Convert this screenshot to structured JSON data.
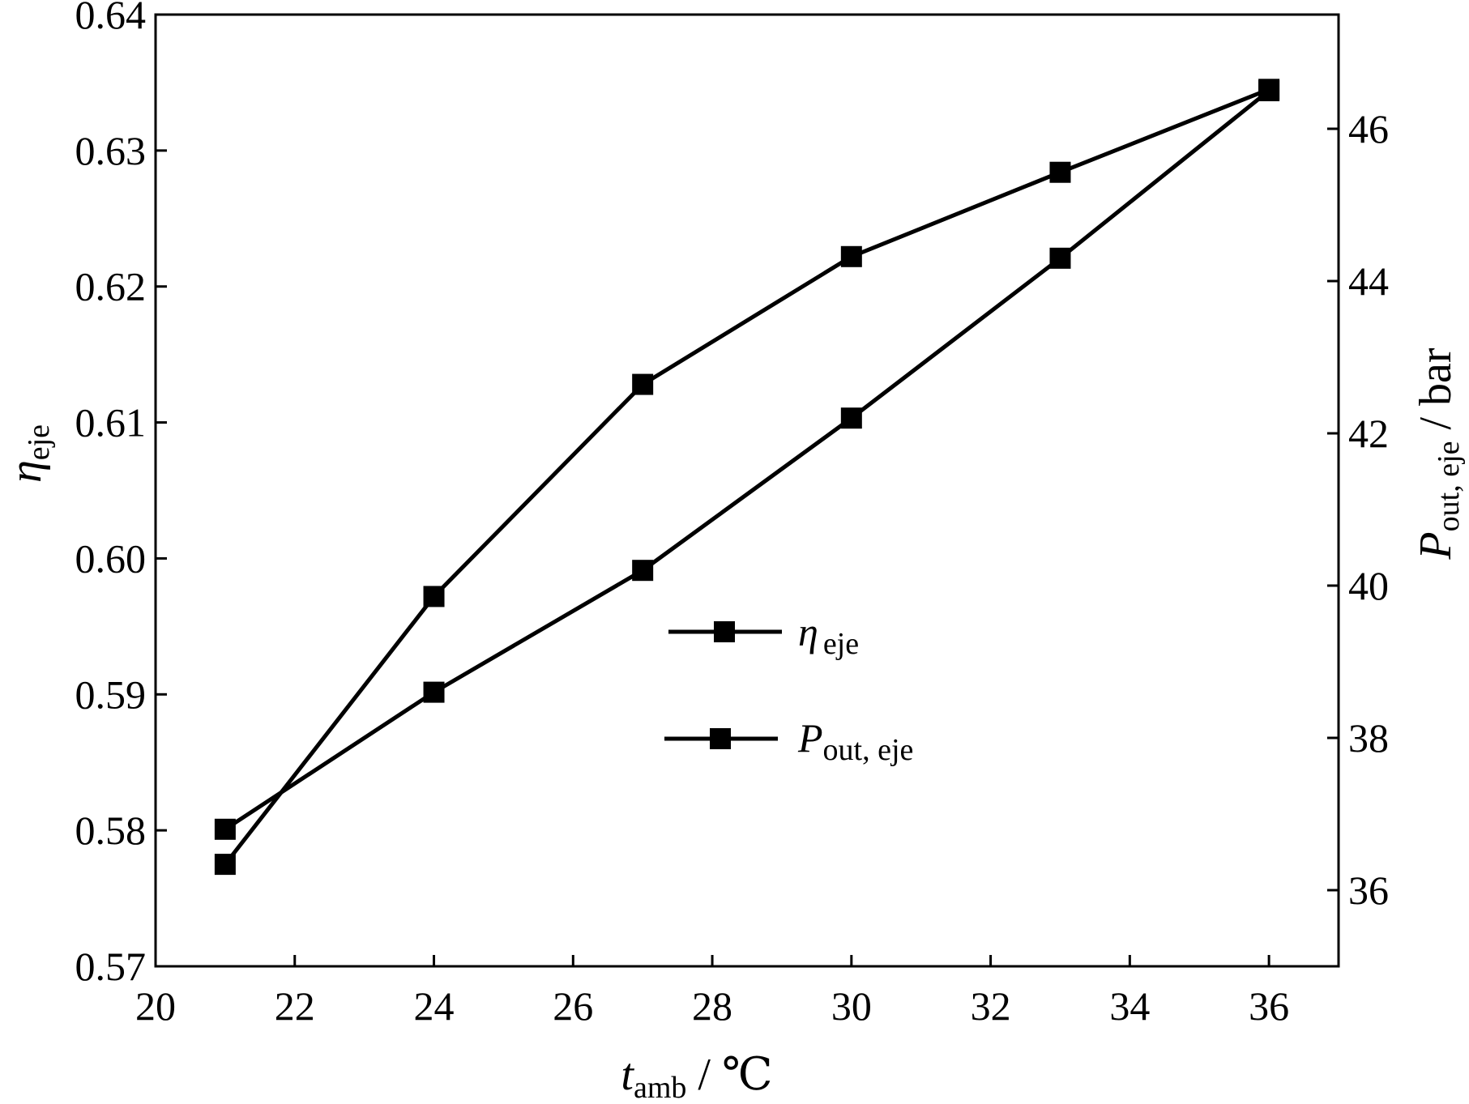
{
  "chart_data": {
    "type": "line",
    "title": "",
    "x": [
      21,
      24,
      27,
      30,
      33,
      36
    ],
    "xlim": [
      20,
      37
    ],
    "x_ticks": [
      "20",
      "22",
      "24",
      "26",
      "28",
      "30",
      "32",
      "34",
      "36"
    ],
    "xlabel": {
      "main": "t",
      "sub": "amb",
      "unit": " / ℃"
    },
    "y_left": {
      "label": {
        "main": "η",
        "sub": "eje"
      },
      "lim": [
        0.57,
        0.64
      ],
      "ticks": [
        "0.57",
        "0.58",
        "0.59",
        "0.60",
        "0.61",
        "0.62",
        "0.63",
        "0.64"
      ]
    },
    "y_right": {
      "label": {
        "main": "P",
        "sub": "out, eje",
        "unit": " / bar"
      },
      "lim": [
        35,
        47.5
      ],
      "ticks": [
        "36",
        "38",
        "40",
        "42",
        "44",
        "46"
      ]
    },
    "series": [
      {
        "name": "η eje",
        "legend": {
          "main": "η",
          "sub": "eje"
        },
        "axis": "left",
        "marker": "square",
        "values": [
          0.5775,
          0.5972,
          0.6128,
          0.6222,
          0.6284,
          0.6345
        ]
      },
      {
        "name": "P out, eje",
        "legend": {
          "main": "P",
          "sub": "out, eje"
        },
        "axis": "right",
        "marker": "square",
        "values": [
          36.8,
          38.6,
          40.2,
          42.2,
          44.3,
          46.5
        ]
      }
    ],
    "legend_position": "center",
    "grid": false,
    "colors": {
      "line": "#000000",
      "marker": "#000000"
    }
  }
}
